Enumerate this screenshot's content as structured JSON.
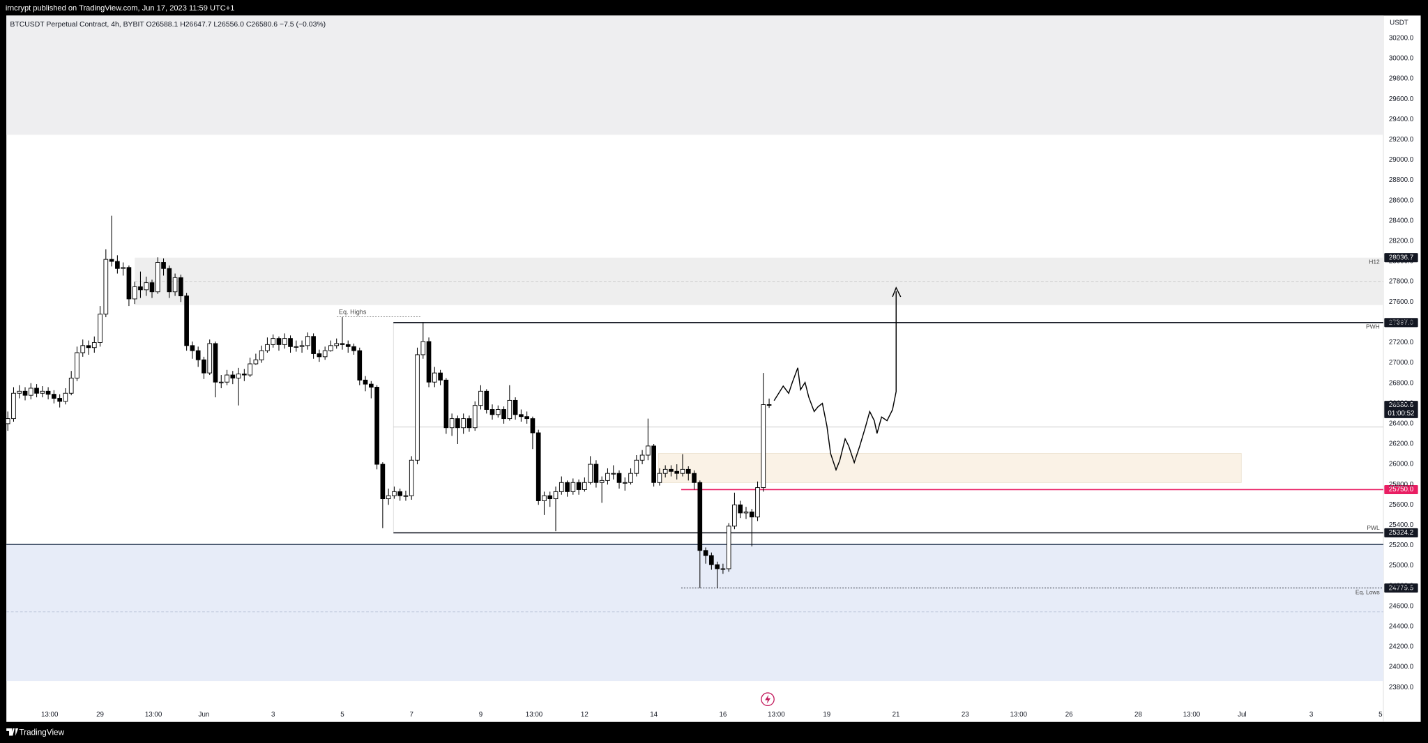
{
  "header": {
    "publisher": "irncrypt published on TradingView.com, Jun 17, 2023 11:59 UTC+1"
  },
  "chart_data": {
    "type": "candlestick",
    "title": "BTCUSDT Perpetual Contract, 4h, BYBIT  O26588.1  H26647.7  L26556.0  C26580.6  −7.5 (−0.03%)",
    "y_unit": "USDT",
    "up_color": "#ffffff",
    "down_color": "#000000",
    "x": [
      "2023-05-26 08:00",
      "2023-05-26 12:00",
      "2023-05-26 16:00",
      "2023-05-26 20:00",
      "2023-05-27 00:00",
      "2023-05-27 04:00",
      "2023-05-27 08:00",
      "2023-05-27 12:00",
      "2023-05-27 16:00",
      "2023-05-27 20:00",
      "2023-05-28 00:00",
      "2023-05-28 04:00",
      "2023-05-28 08:00",
      "2023-05-28 12:00",
      "2023-05-28 16:00",
      "2023-05-28 20:00",
      "2023-05-29 00:00",
      "2023-05-29 04:00",
      "2023-05-29 08:00",
      "2023-05-29 12:00",
      "2023-05-29 16:00",
      "2023-05-29 20:00",
      "2023-05-30 00:00",
      "2023-05-30 04:00",
      "2023-05-30 08:00",
      "2023-05-30 12:00",
      "2023-05-30 16:00",
      "2023-05-30 20:00",
      "2023-05-31 00:00",
      "2023-05-31 04:00",
      "2023-05-31 08:00",
      "2023-05-31 12:00",
      "2023-05-31 16:00",
      "2023-05-31 20:00",
      "2023-06-01 00:00",
      "2023-06-01 04:00",
      "2023-06-01 08:00",
      "2023-06-01 12:00",
      "2023-06-01 16:00",
      "2023-06-01 20:00",
      "2023-06-02 00:00",
      "2023-06-02 04:00",
      "2023-06-02 08:00",
      "2023-06-02 12:00",
      "2023-06-02 16:00",
      "2023-06-02 20:00",
      "2023-06-03 00:00",
      "2023-06-03 04:00",
      "2023-06-03 08:00",
      "2023-06-03 12:00",
      "2023-06-03 16:00",
      "2023-06-03 20:00",
      "2023-06-04 00:00",
      "2023-06-04 04:00",
      "2023-06-04 08:00",
      "2023-06-04 12:00",
      "2023-06-04 16:00",
      "2023-06-04 20:00",
      "2023-06-05 00:00",
      "2023-06-05 04:00",
      "2023-06-05 08:00",
      "2023-06-05 12:00",
      "2023-06-05 16:00",
      "2023-06-05 20:00",
      "2023-06-06 00:00",
      "2023-06-06 04:00",
      "2023-06-06 08:00",
      "2023-06-06 12:00",
      "2023-06-06 16:00",
      "2023-06-06 20:00",
      "2023-06-07 00:00",
      "2023-06-07 04:00",
      "2023-06-07 08:00",
      "2023-06-07 12:00",
      "2023-06-07 16:00",
      "2023-06-07 20:00",
      "2023-06-08 00:00",
      "2023-06-08 04:00",
      "2023-06-08 08:00",
      "2023-06-08 12:00",
      "2023-06-08 16:00",
      "2023-06-08 20:00",
      "2023-06-09 00:00",
      "2023-06-09 04:00",
      "2023-06-09 08:00",
      "2023-06-09 12:00",
      "2023-06-09 16:00",
      "2023-06-09 20:00",
      "2023-06-10 00:00",
      "2023-06-10 04:00",
      "2023-06-10 08:00",
      "2023-06-10 12:00",
      "2023-06-10 16:00",
      "2023-06-10 20:00",
      "2023-06-11 00:00",
      "2023-06-11 04:00",
      "2023-06-11 08:00",
      "2023-06-11 12:00",
      "2023-06-11 16:00",
      "2023-06-11 20:00",
      "2023-06-12 00:00",
      "2023-06-12 04:00",
      "2023-06-12 08:00",
      "2023-06-12 12:00",
      "2023-06-12 16:00",
      "2023-06-12 20:00",
      "2023-06-13 00:00",
      "2023-06-13 04:00",
      "2023-06-13 08:00",
      "2023-06-13 12:00",
      "2023-06-13 16:00",
      "2023-06-13 20:00",
      "2023-06-14 00:00",
      "2023-06-14 04:00",
      "2023-06-14 08:00",
      "2023-06-14 12:00",
      "2023-06-14 16:00",
      "2023-06-14 20:00",
      "2023-06-15 00:00",
      "2023-06-15 04:00",
      "2023-06-15 08:00",
      "2023-06-15 12:00",
      "2023-06-15 16:00",
      "2023-06-15 20:00",
      "2023-06-16 00:00",
      "2023-06-16 04:00",
      "2023-06-16 08:00",
      "2023-06-16 12:00",
      "2023-06-16 16:00",
      "2023-06-16 20:00",
      "2023-06-17 00:00",
      "2023-06-17 04:00",
      "2023-06-17 08:00"
    ],
    "ohlc": [
      [
        26400,
        26520,
        26330,
        26450
      ],
      [
        26450,
        26760,
        26420,
        26700
      ],
      [
        26700,
        26780,
        26650,
        26720
      ],
      [
        26720,
        26760,
        26630,
        26680
      ],
      [
        26680,
        26800,
        26640,
        26750
      ],
      [
        26750,
        26790,
        26660,
        26700
      ],
      [
        26700,
        26770,
        26660,
        26720
      ],
      [
        26720,
        26760,
        26640,
        26690
      ],
      [
        26690,
        26730,
        26600,
        26650
      ],
      [
        26650,
        26690,
        26560,
        26620
      ],
      [
        26620,
        26750,
        26590,
        26700
      ],
      [
        26700,
        26920,
        26680,
        26850
      ],
      [
        26850,
        27160,
        26820,
        27100
      ],
      [
        27100,
        27230,
        27060,
        27170
      ],
      [
        27170,
        27220,
        27080,
        27150
      ],
      [
        27150,
        27260,
        27100,
        27200
      ],
      [
        27200,
        27560,
        27160,
        27480
      ],
      [
        27480,
        28120,
        27450,
        28020
      ],
      [
        28020,
        28450,
        27950,
        28000
      ],
      [
        28000,
        28060,
        27880,
        27930
      ],
      [
        27930,
        27990,
        27860,
        27940
      ],
      [
        27940,
        27960,
        27560,
        27630
      ],
      [
        27630,
        27800,
        27580,
        27750
      ],
      [
        27750,
        27900,
        27640,
        27720
      ],
      [
        27720,
        27850,
        27660,
        27790
      ],
      [
        27790,
        27820,
        27640,
        27700
      ],
      [
        27700,
        28040,
        27680,
        27990
      ],
      [
        27990,
        28030,
        27860,
        27930
      ],
      [
        27930,
        27960,
        27640,
        27700
      ],
      [
        27700,
        27880,
        27660,
        27840
      ],
      [
        27840,
        27870,
        27600,
        27660
      ],
      [
        27660,
        27690,
        27120,
        27170
      ],
      [
        27170,
        27210,
        27040,
        27120
      ],
      [
        27120,
        27160,
        26960,
        27030
      ],
      [
        27030,
        27060,
        26840,
        26900
      ],
      [
        26900,
        27230,
        26880,
        27190
      ],
      [
        27190,
        27210,
        26660,
        26810
      ],
      [
        26810,
        26880,
        26750,
        26810
      ],
      [
        26810,
        26930,
        26780,
        26880
      ],
      [
        26880,
        26920,
        26790,
        26850
      ],
      [
        26850,
        26950,
        26580,
        26890
      ],
      [
        26890,
        26940,
        26820,
        26880
      ],
      [
        26880,
        27050,
        26860,
        26990
      ],
      [
        26990,
        27090,
        26980,
        27030
      ],
      [
        27030,
        27170,
        27000,
        27120
      ],
      [
        27120,
        27250,
        27100,
        27180
      ],
      [
        27180,
        27280,
        27150,
        27240
      ],
      [
        27240,
        27260,
        27120,
        27180
      ],
      [
        27180,
        27290,
        27140,
        27240
      ],
      [
        27240,
        27270,
        27100,
        27160
      ],
      [
        27160,
        27220,
        27110,
        27160
      ],
      [
        27160,
        27220,
        27100,
        27170
      ],
      [
        27170,
        27300,
        27130,
        27260
      ],
      [
        27260,
        27290,
        27040,
        27090
      ],
      [
        27090,
        27130,
        27010,
        27060
      ],
      [
        27060,
        27160,
        27030,
        27120
      ],
      [
        27120,
        27220,
        27110,
        27170
      ],
      [
        27170,
        27240,
        27140,
        27190
      ],
      [
        27190,
        27450,
        27130,
        27180
      ],
      [
        27180,
        27220,
        27100,
        27160
      ],
      [
        27160,
        27190,
        27080,
        27120
      ],
      [
        27120,
        27150,
        26780,
        26830
      ],
      [
        26830,
        26870,
        26720,
        26790
      ],
      [
        26790,
        26820,
        26650,
        26760
      ],
      [
        26760,
        26780,
        25950,
        26000
      ],
      [
        26000,
        26020,
        25370,
        25660
      ],
      [
        25660,
        25760,
        25600,
        25690
      ],
      [
        25690,
        25780,
        25660,
        25730
      ],
      [
        25730,
        25760,
        25640,
        25690
      ],
      [
        25690,
        25740,
        25640,
        25690
      ],
      [
        25690,
        26080,
        25650,
        26040
      ],
      [
        26040,
        27150,
        26000,
        27080
      ],
      [
        27080,
        27400,
        27040,
        27210
      ],
      [
        27210,
        27250,
        26760,
        26810
      ],
      [
        26810,
        26960,
        26760,
        26900
      ],
      [
        26900,
        26930,
        26780,
        26830
      ],
      [
        26830,
        26850,
        26300,
        26360
      ],
      [
        26360,
        26500,
        26280,
        26450
      ],
      [
        26450,
        26480,
        26200,
        26360
      ],
      [
        26360,
        26500,
        26300,
        26450
      ],
      [
        26450,
        26480,
        26320,
        26360
      ],
      [
        26360,
        26620,
        26330,
        26580
      ],
      [
        26580,
        26780,
        26540,
        26720
      ],
      [
        26720,
        26740,
        26500,
        26540
      ],
      [
        26540,
        26590,
        26440,
        26490
      ],
      [
        26490,
        26580,
        26460,
        26540
      ],
      [
        26540,
        26570,
        26400,
        26450
      ],
      [
        26450,
        26780,
        26430,
        26630
      ],
      [
        26630,
        26660,
        26440,
        26490
      ],
      [
        26490,
        26540,
        26420,
        26470
      ],
      [
        26470,
        26520,
        26400,
        26450
      ],
      [
        26450,
        26470,
        26150,
        26310
      ],
      [
        26310,
        26340,
        25600,
        25640
      ],
      [
        25640,
        25730,
        25500,
        25690
      ],
      [
        25690,
        25730,
        25580,
        25660
      ],
      [
        25660,
        25780,
        25340,
        25730
      ],
      [
        25730,
        25880,
        25700,
        25820
      ],
      [
        25820,
        25840,
        25680,
        25730
      ],
      [
        25730,
        25860,
        25700,
        25820
      ],
      [
        25820,
        25850,
        25700,
        25750
      ],
      [
        25750,
        25870,
        25730,
        25820
      ],
      [
        25820,
        26080,
        25800,
        26000
      ],
      [
        26000,
        26040,
        25770,
        25820
      ],
      [
        25820,
        25880,
        25620,
        25840
      ],
      [
        25840,
        25960,
        25800,
        25910
      ],
      [
        25910,
        25990,
        25850,
        25910
      ],
      [
        25910,
        25940,
        25760,
        25820
      ],
      [
        25820,
        25870,
        25740,
        25820
      ],
      [
        25820,
        25960,
        25800,
        25910
      ],
      [
        25910,
        26090,
        25880,
        26040
      ],
      [
        26040,
        26140,
        26000,
        26090
      ],
      [
        26090,
        26450,
        26040,
        26180
      ],
      [
        26180,
        26200,
        25780,
        25820
      ],
      [
        25820,
        25960,
        25790,
        25910
      ],
      [
        25910,
        25990,
        25870,
        25950
      ],
      [
        25950,
        25990,
        25880,
        25930
      ],
      [
        25930,
        26000,
        25850,
        25910
      ],
      [
        25910,
        26100,
        25880,
        25950
      ],
      [
        25950,
        25980,
        25840,
        25910
      ],
      [
        25910,
        25940,
        25750,
        25820
      ],
      [
        25820,
        25840,
        24780,
        25150
      ],
      [
        25150,
        25180,
        25020,
        25100
      ],
      [
        25100,
        25130,
        24960,
        25010
      ],
      [
        25010,
        25040,
        24780,
        24970
      ],
      [
        24970,
        25020,
        24920,
        24970
      ],
      [
        24970,
        25420,
        24940,
        25390
      ],
      [
        25390,
        25720,
        25360,
        25600
      ],
      [
        25600,
        25640,
        25470,
        25520
      ],
      [
        25520,
        25580,
        25460,
        25530
      ],
      [
        25530,
        25560,
        25190,
        25480
      ],
      [
        25480,
        25830,
        25440,
        25770
      ],
      [
        25770,
        26900,
        25730,
        26588.1
      ],
      [
        26588.1,
        26647.7,
        26556.0,
        26580.6
      ]
    ],
    "xlim": [
      "2023-05-26 07:00",
      "2023-07-05 02:00"
    ],
    "ylim": [
      23459,
      30424
    ],
    "xticks": [
      {
        "value": "2023-05-27 13:00",
        "label": "13:00"
      },
      {
        "value": "2023-05-29 00:00",
        "label": "29"
      },
      {
        "value": "2023-05-30 13:00",
        "label": "13:00"
      },
      {
        "value": "2023-06-01 00:00",
        "label": "Jun"
      },
      {
        "value": "2023-06-03 00:00",
        "label": "3"
      },
      {
        "value": "2023-06-05 00:00",
        "label": "5"
      },
      {
        "value": "2023-06-07 00:00",
        "label": "7"
      },
      {
        "value": "2023-06-09 00:00",
        "label": "9"
      },
      {
        "value": "2023-06-10 13:00",
        "label": "13:00"
      },
      {
        "value": "2023-06-12 00:00",
        "label": "12"
      },
      {
        "value": "2023-06-14 00:00",
        "label": "14"
      },
      {
        "value": "2023-06-16 00:00",
        "label": "16"
      },
      {
        "value": "2023-06-17 13:00",
        "label": "13:00"
      },
      {
        "value": "2023-06-19 00:00",
        "label": "19"
      },
      {
        "value": "2023-06-21 00:00",
        "label": "21"
      },
      {
        "value": "2023-06-23 00:00",
        "label": "23"
      },
      {
        "value": "2023-06-24 13:00",
        "label": "13:00"
      },
      {
        "value": "2023-06-26 00:00",
        "label": "26"
      },
      {
        "value": "2023-06-28 00:00",
        "label": "28"
      },
      {
        "value": "2023-06-29 13:00",
        "label": "13:00"
      },
      {
        "value": "2023-07-01 00:00",
        "label": "Jul"
      },
      {
        "value": "2023-07-03 00:00",
        "label": "3"
      },
      {
        "value": "2023-07-05 00:00",
        "label": "5"
      }
    ],
    "yticks": [
      {
        "value": 30200,
        "label": "30200.0"
      },
      {
        "value": 30000,
        "label": "30000.0"
      },
      {
        "value": 29800,
        "label": "29800.0"
      },
      {
        "value": 29600,
        "label": "29600.0"
      },
      {
        "value": 29400,
        "label": "29400.0"
      },
      {
        "value": 29200,
        "label": "29200.0"
      },
      {
        "value": 29000,
        "label": "29000.0"
      },
      {
        "value": 28800,
        "label": "28800.0"
      },
      {
        "value": 28600,
        "label": "28600.0"
      },
      {
        "value": 28400,
        "label": "28400.0"
      },
      {
        "value": 28200,
        "label": "28200.0"
      },
      {
        "value": 28000,
        "label": "28000.0"
      },
      {
        "value": 27800,
        "label": "27800.0"
      },
      {
        "value": 27600,
        "label": "27600.0"
      },
      {
        "value": 27400,
        "label": "27400.0"
      },
      {
        "value": 27200,
        "label": "27200.0"
      },
      {
        "value": 27000,
        "label": "27000.0"
      },
      {
        "value": 26800,
        "label": "26800.0"
      },
      {
        "value": 26600,
        "label": "26600.0"
      },
      {
        "value": 26400,
        "label": "26400.0"
      },
      {
        "value": 26200,
        "label": "26200.0"
      },
      {
        "value": 26000,
        "label": "26000.0"
      },
      {
        "value": 25800,
        "label": "25800.0"
      },
      {
        "value": 25600,
        "label": "25600.0"
      },
      {
        "value": 25400,
        "label": "25400.0"
      },
      {
        "value": 25200,
        "label": "25200.0"
      },
      {
        "value": 25000,
        "label": "25000.0"
      },
      {
        "value": 24800,
        "label": "24800.0"
      },
      {
        "value": 24600,
        "label": "24600.0"
      },
      {
        "value": 24400,
        "label": "24400.0"
      },
      {
        "value": 24200,
        "label": "24200.0"
      },
      {
        "value": 24000,
        "label": "24000.0"
      },
      {
        "value": 23800,
        "label": "23800.0"
      }
    ],
    "levels": [
      {
        "value": 28036.7,
        "tag": "H12",
        "color": "#131722"
      },
      {
        "value": 27397,
        "label": "27397.0",
        "tag": "PWH",
        "color": "#131722"
      },
      {
        "value": 26580.6,
        "countdown": "01:00:52",
        "color": "#131722"
      },
      {
        "value": 25750,
        "label": "25750.0",
        "color": "#e91e63"
      },
      {
        "value": 25324.2,
        "tag": "PWL",
        "color": "#131722"
      },
      {
        "value": 24779.5,
        "tag": "Eq. Lows",
        "color": "#131722"
      }
    ],
    "annotations": [
      "Eq. Highs"
    ]
  },
  "footer": {
    "brand": "TradingView"
  }
}
